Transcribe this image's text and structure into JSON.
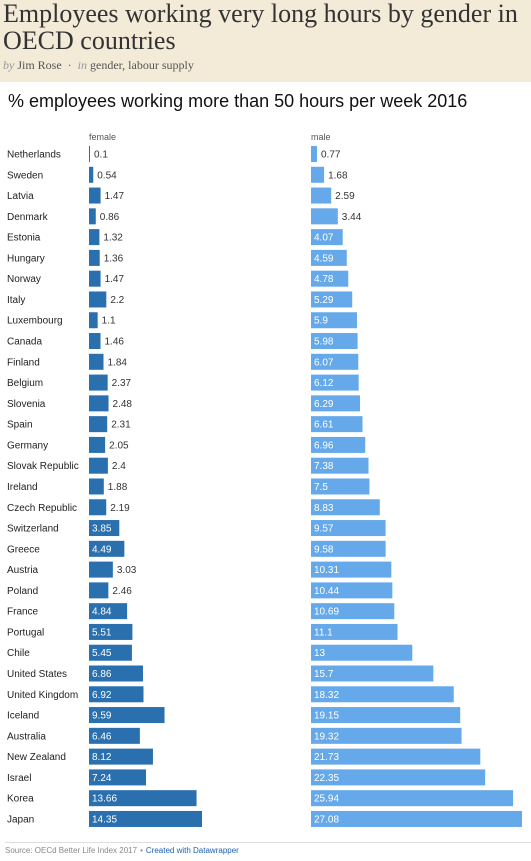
{
  "page": {
    "title": "Employees working very long hours by gender in OECD countries",
    "byline_by": "by",
    "byline_author": "Jim Rose",
    "byline_in": "in",
    "byline_tags": "gender, labour supply"
  },
  "footer": {
    "source": "Source: OECd Better Life Index 2017",
    "separator": "•",
    "credit": "Created with Datawrapper"
  },
  "colors": {
    "female": "#2a6fae",
    "male": "#65a9ea",
    "header_bg": "#f3ead8"
  },
  "chart_data": {
    "type": "bar",
    "title": "% employees working more than 50 hours per week 2016",
    "categories": [
      "Netherlands",
      "Sweden",
      "Latvia",
      "Denmark",
      "Estonia",
      "Hungary",
      "Norway",
      "Italy",
      "Luxembourg",
      "Canada",
      "Finland",
      "Belgium",
      "Slovenia",
      "Spain",
      "Germany",
      "Slovak Republic",
      "Ireland",
      "Czech Republic",
      "Switzerland",
      "Greece",
      "Austria",
      "Poland",
      "France",
      "Portugal",
      "Chile",
      "United States",
      "United Kingdom",
      "Iceland",
      "Australia",
      "New Zealand",
      "Israel",
      "Korea",
      "Japan"
    ],
    "series": [
      {
        "name": "female",
        "values": [
          0.1,
          0.54,
          1.47,
          0.86,
          1.32,
          1.36,
          1.47,
          2.2,
          1.1,
          1.46,
          1.84,
          2.37,
          2.48,
          2.31,
          2.05,
          2.4,
          1.88,
          2.19,
          3.85,
          4.49,
          3.03,
          2.46,
          4.84,
          5.51,
          5.45,
          6.86,
          6.92,
          9.59,
          6.46,
          8.12,
          7.24,
          13.66,
          14.35
        ]
      },
      {
        "name": "male",
        "values": [
          0.77,
          1.68,
          2.59,
          3.44,
          4.07,
          4.59,
          4.78,
          5.29,
          5.9,
          5.98,
          6.07,
          6.12,
          6.29,
          6.61,
          6.96,
          7.38,
          7.5,
          8.83,
          9.57,
          9.58,
          10.31,
          10.44,
          10.69,
          11.1,
          13,
          15.7,
          18.32,
          19.15,
          19.32,
          21.73,
          22.35,
          25.94,
          27.08
        ]
      }
    ],
    "labels": {
      "female": [
        "0.1",
        "0.54",
        "1.47",
        "0.86",
        "1.32",
        "1.36",
        "1.47",
        "2.2",
        "1.1",
        "1.46",
        "1.84",
        "2.37",
        "2.48",
        "2.31",
        "2.05",
        "2.4",
        "1.88",
        "2.19",
        "3.85",
        "4.49",
        "3.03",
        "2.46",
        "4.84",
        "5.51",
        "5.45",
        "6.86",
        "6.92",
        "9.59",
        "6.46",
        "8.12",
        "7.24",
        "13.66",
        "14.35"
      ],
      "male": [
        "0.77",
        "1.68",
        "2.59",
        "3.44",
        "4.07",
        "4.59",
        "4.78",
        "5.29",
        "5.9",
        "5.98",
        "6.07",
        "6.12",
        "6.29",
        "6.61",
        "6.96",
        "7.38",
        "7.5",
        "8.83",
        "9.57",
        "9.58",
        "10.31",
        "10.44",
        "10.69",
        "11.1",
        "13",
        "15.7",
        "18.32",
        "19.15",
        "19.32",
        "21.73",
        "22.35",
        "25.94",
        "27.08"
      ]
    },
    "grid": false,
    "legend": "column headers above bars"
  }
}
